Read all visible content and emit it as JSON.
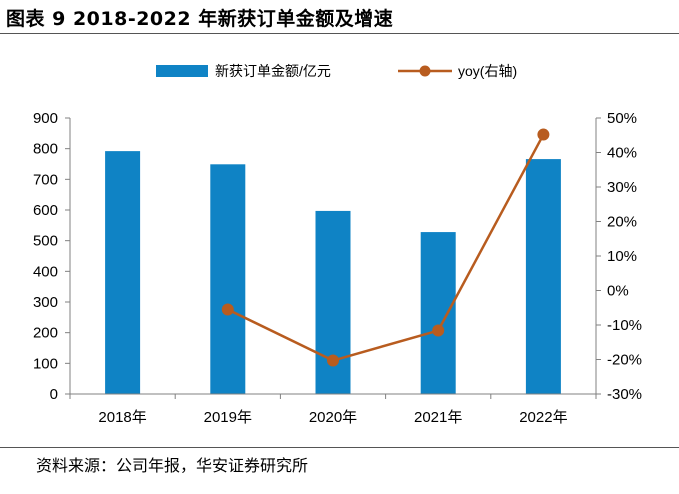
{
  "figure_title": "图表 9 2018-2022 年新获订单金额及增速",
  "source_note": "资料来源：公司年报，华安证券研究所",
  "colors": {
    "bar": "#0F83C5",
    "line": "#B85C1F"
  },
  "chart_data": {
    "type": "bar",
    "title": "图表 9 2018-2022 年新获订单金额及增速",
    "categories": [
      "2018年",
      "2019年",
      "2020年",
      "2021年",
      "2022年"
    ],
    "series": [
      {
        "name": "新获订单金额/亿元",
        "type": "bar",
        "axis": "left",
        "values": [
          792,
          749,
          597,
          528,
          766
        ]
      },
      {
        "name": "yoy(右轴)",
        "type": "line",
        "axis": "right",
        "values": [
          null,
          -5.5,
          -20.3,
          -11.6,
          45.2
        ]
      }
    ],
    "ylim": [
      0,
      900
    ],
    "yticks": [
      "0",
      "100",
      "200",
      "300",
      "400",
      "500",
      "600",
      "700",
      "800",
      "900"
    ],
    "y2lim": [
      -30,
      50
    ],
    "y2ticks": [
      "-30%",
      "-20%",
      "-10%",
      "0%",
      "10%",
      "20%",
      "30%",
      "40%",
      "50%"
    ],
    "grid": false,
    "legend_position": "top"
  }
}
